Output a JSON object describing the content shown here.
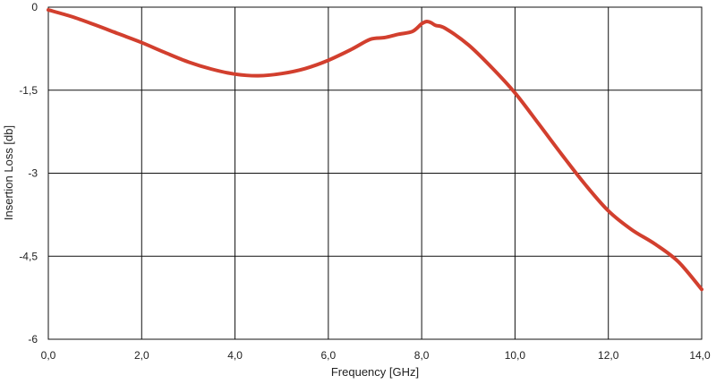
{
  "chart_data": {
    "type": "line",
    "title": "",
    "xlabel": "Frequency [GHz]",
    "ylabel": "Insertion Loss [db]",
    "xlim": [
      0,
      14
    ],
    "ylim": [
      -6,
      0
    ],
    "grid": true,
    "x_ticks": [
      0,
      2,
      4,
      6,
      8,
      10,
      12,
      14
    ],
    "x_tick_labels": [
      "0,0",
      "2,0",
      "4,0",
      "6,0",
      "8,0",
      "10,0",
      "12,0",
      "14,0"
    ],
    "y_ticks": [
      0,
      -1.5,
      -3,
      -4.5,
      -6
    ],
    "y_tick_labels": [
      "0",
      "-1,5",
      "-3",
      "-4,5",
      "-6"
    ],
    "series": [
      {
        "color": "#d23f2e",
        "x": [
          0,
          0.5,
          1,
          1.5,
          2,
          2.5,
          3,
          3.5,
          4,
          4.5,
          5,
          5.5,
          6,
          6.5,
          6.9,
          7.2,
          7.5,
          7.8,
          8.0,
          8.1,
          8.2,
          8.3,
          8.5,
          9,
          9.5,
          10,
          10.5,
          11,
          11.5,
          12,
          12.5,
          13,
          13.5,
          14
        ],
        "y": [
          -0.05,
          -0.17,
          -0.32,
          -0.48,
          -0.64,
          -0.82,
          -0.99,
          -1.12,
          -1.21,
          -1.24,
          -1.2,
          -1.11,
          -0.96,
          -0.76,
          -0.58,
          -0.55,
          -0.49,
          -0.44,
          -0.3,
          -0.26,
          -0.28,
          -0.33,
          -0.38,
          -0.68,
          -1.09,
          -1.55,
          -2.1,
          -2.66,
          -3.2,
          -3.68,
          -4.02,
          -4.28,
          -4.6,
          -5.1
        ]
      }
    ]
  }
}
